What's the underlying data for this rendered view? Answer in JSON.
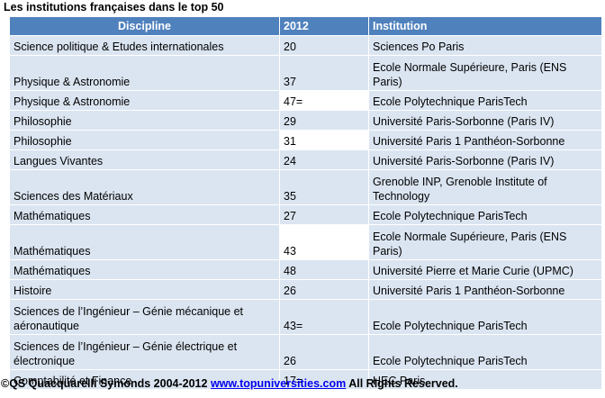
{
  "title": "Les institutions françaises dans le top 50",
  "table": {
    "headers": [
      "Discipline",
      "2012",
      "Institution"
    ],
    "rows": [
      {
        "discipline": "Science politique & Etudes internationales",
        "rank": "20",
        "institution": "Sciences Po Paris"
      },
      {
        "discipline": "Physique & Astronomie",
        "rank": "37",
        "institution": "Ecole Normale Supérieure, Paris (ENS Paris)"
      },
      {
        "discipline": "Physique & Astronomie",
        "rank": "47=",
        "institution": "Ecole Polytechnique ParisTech"
      },
      {
        "discipline": "Philosophie",
        "rank": "29",
        "institution": "Université Paris-Sorbonne (Paris IV)"
      },
      {
        "discipline": "Philosophie",
        "rank": "31",
        "institution": "Université Paris 1 Panthéon-Sorbonne"
      },
      {
        "discipline": "Langues Vivantes",
        "rank": "24",
        "institution": "Université Paris-Sorbonne (Paris IV)"
      },
      {
        "discipline": "Sciences des Matériaux",
        "rank": "35",
        "institution": "Grenoble INP, Grenoble Institute of Technology"
      },
      {
        "discipline": "Mathématiques",
        "rank": "27",
        "institution": "Ecole Polytechnique ParisTech"
      },
      {
        "discipline": "Mathématiques",
        "rank": "43",
        "institution": "Ecole Normale Supérieure, Paris (ENS Paris)"
      },
      {
        "discipline": "Mathématiques",
        "rank": "48",
        "institution": "Université Pierre et Marie Curie (UPMC)"
      },
      {
        "discipline": "Histoire",
        "rank": "26",
        "institution": "Université Paris 1 Panthéon-Sorbonne"
      },
      {
        "discipline": "Sciences de l’Ingénieur – Génie mécanique et aéronautique",
        "rank": "43=",
        "institution": "Ecole Polytechnique ParisTech"
      },
      {
        "discipline": "Sciences de l’Ingénieur – Génie électrique et électronique",
        "rank": "26",
        "institution": "Ecole Polytechnique ParisTech"
      },
      {
        "discipline": "Comptabilité et Finance",
        "rank": "17=",
        "institution": "HEC Paris"
      }
    ]
  },
  "footer": {
    "copyright": "©QS Quacquarelli Symonds 2004-2012",
    "link": "www.topuniversities.com",
    "rights": "All Rights Reserved."
  }
}
